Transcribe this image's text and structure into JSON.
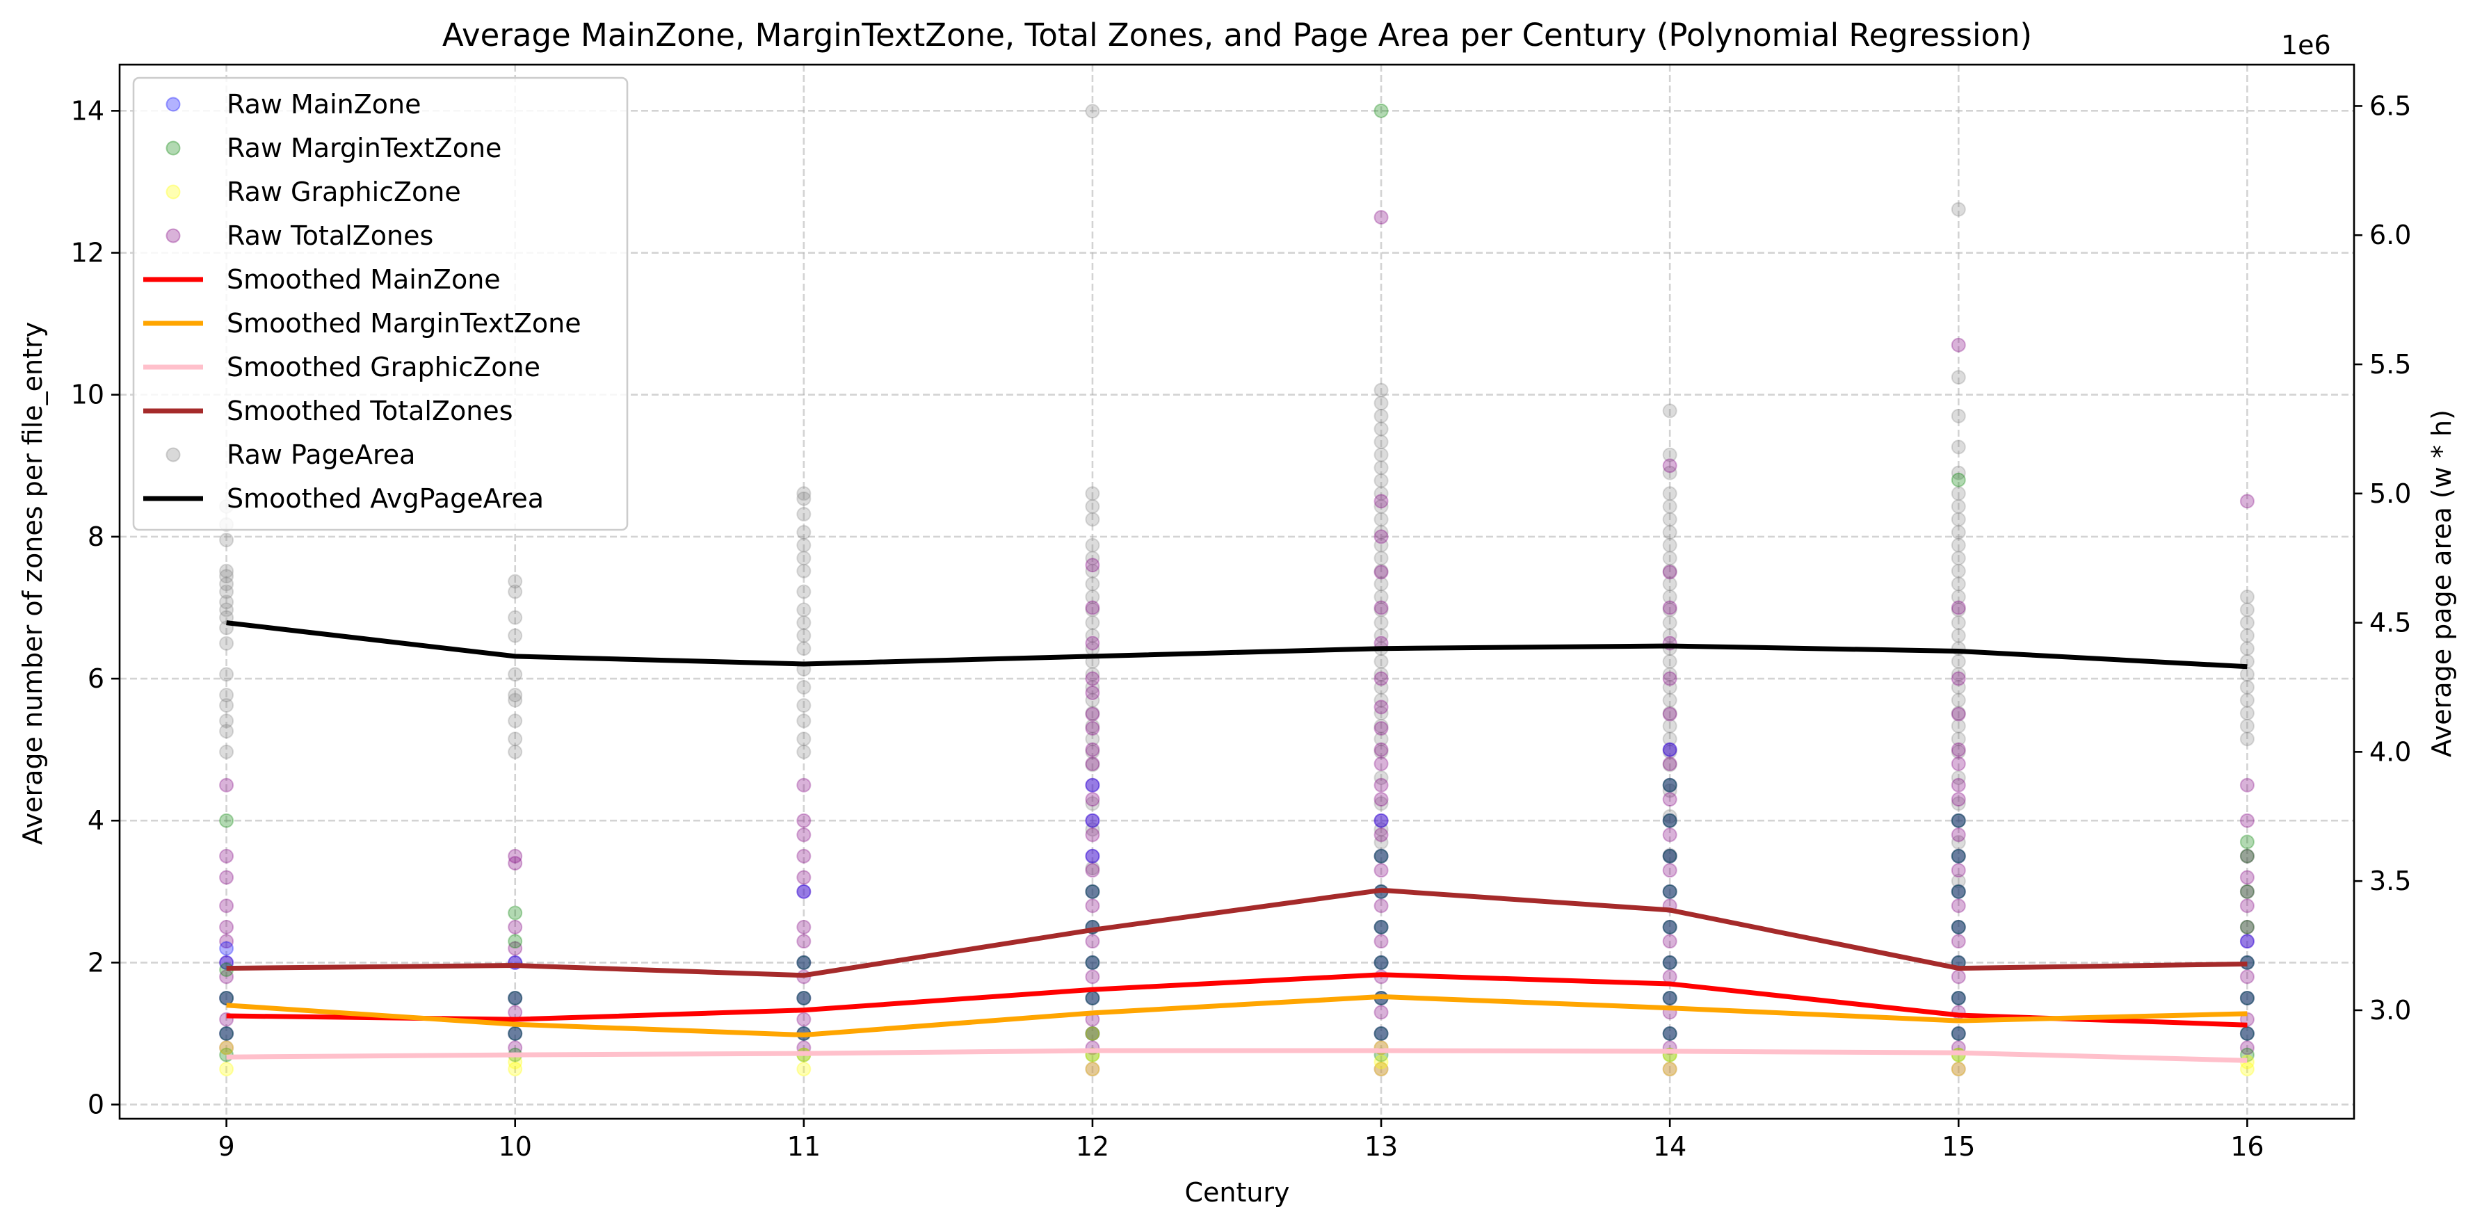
{
  "chart_data": {
    "type": "scatter",
    "title": "Average MainZone, MarginTextZone, Total Zones, and Page Area per Century (Polynomial Regression)",
    "xlabel": "Century",
    "ylabel_left": "Average number of zones per file_entry",
    "ylabel_right": "Average page area (w * h)",
    "right_axis_offset_label": "1e6",
    "x_ticks": [
      9,
      10,
      11,
      12,
      13,
      14,
      15,
      16
    ],
    "x_range": [
      8.63,
      16.37
    ],
    "y_left_range": [
      -0.2,
      14.65
    ],
    "y_left_ticks": [
      0,
      2,
      4,
      6,
      8,
      10,
      12,
      14
    ],
    "y_right_range": [
      2.58,
      6.66
    ],
    "y_right_ticks": [
      "3.0",
      "3.5",
      "4.0",
      "4.5",
      "5.0",
      "5.5",
      "6.0",
      "6.5"
    ],
    "grid": true,
    "legend_position": "upper left",
    "legend": [
      {
        "label": "Raw MainZone",
        "kind": "marker",
        "color": "#0000ff"
      },
      {
        "label": "Raw MarginTextZone",
        "kind": "marker",
        "color": "#008000"
      },
      {
        "label": "Raw GraphicZone",
        "kind": "marker",
        "color": "#ffff00"
      },
      {
        "label": "Raw TotalZones",
        "kind": "marker",
        "color": "#800080"
      },
      {
        "label": "Smoothed MainZone",
        "kind": "line",
        "color": "#ff0000"
      },
      {
        "label": "Smoothed MarginTextZone",
        "kind": "line",
        "color": "#ffa500"
      },
      {
        "label": "Smoothed GraphicZone",
        "kind": "line",
        "color": "#ffc0cb"
      },
      {
        "label": "Smoothed TotalZones",
        "kind": "line",
        "color": "#a52a2a"
      },
      {
        "label": "Raw PageArea",
        "kind": "marker",
        "color": "#808080"
      },
      {
        "label": "Smoothed AvgPageArea",
        "kind": "line",
        "color": "#000000"
      }
    ],
    "x": [
      9,
      10,
      11,
      12,
      13,
      14,
      15,
      16
    ],
    "smoothed_series": [
      {
        "name": "Smoothed MainZone",
        "axis": "left",
        "color": "#ff0000",
        "values": [
          1.25,
          1.2,
          1.33,
          1.62,
          1.83,
          1.7,
          1.26,
          1.12
        ]
      },
      {
        "name": "Smoothed MarginTextZone",
        "axis": "left",
        "color": "#ffa500",
        "values": [
          1.4,
          1.13,
          0.98,
          1.29,
          1.52,
          1.36,
          1.18,
          1.28
        ]
      },
      {
        "name": "Smoothed GraphicZone",
        "axis": "left",
        "color": "#ffc0cb",
        "values": [
          0.67,
          0.7,
          0.72,
          0.76,
          0.76,
          0.75,
          0.73,
          0.62
        ]
      },
      {
        "name": "Smoothed TotalZones",
        "axis": "left",
        "color": "#a52a2a",
        "values": [
          1.92,
          1.96,
          1.82,
          2.46,
          3.02,
          2.74,
          1.92,
          1.98
        ]
      },
      {
        "name": "Smoothed AvgPageArea",
        "axis": "right",
        "color": "#000000",
        "values": [
          4.5,
          4.37,
          4.34,
          4.37,
          4.4,
          4.41,
          4.39,
          4.33
        ]
      }
    ],
    "raw_series": [
      {
        "name": "Raw PageArea",
        "axis": "right",
        "color": "#808080",
        "points": [
          {
            "x": 9,
            "y": [
              4.0,
              4.08,
              4.12,
              4.18,
              4.22,
              4.3,
              4.42,
              4.48,
              4.52,
              4.55,
              4.58,
              4.62,
              4.65,
              4.68,
              4.7,
              4.82,
              4.88,
              4.95
            ]
          },
          {
            "x": 10,
            "y": [
              4.0,
              4.05,
              4.12,
              4.2,
              4.22,
              4.3,
              4.45,
              4.52,
              4.62,
              4.66,
              4.98
            ]
          },
          {
            "x": 11,
            "y": [
              4.0,
              4.05,
              4.12,
              4.18,
              4.25,
              4.32,
              4.4,
              4.45,
              4.5,
              4.55,
              4.62,
              4.7,
              4.75,
              4.8,
              4.85,
              4.92,
              4.98,
              5.0
            ]
          },
          {
            "x": 12,
            "y": [
              3.55,
              3.7,
              3.8,
              3.95,
              4.0,
              4.05,
              4.1,
              4.15,
              4.2,
              4.25,
              4.3,
              4.35,
              4.4,
              4.45,
              4.5,
              4.55,
              4.6,
              4.65,
              4.7,
              4.75,
              4.8,
              4.9,
              4.95,
              5.0,
              6.48
            ]
          },
          {
            "x": 13,
            "y": [
              3.65,
              3.7,
              3.8,
              3.9,
              4.0,
              4.05,
              4.1,
              4.15,
              4.2,
              4.25,
              4.3,
              4.35,
              4.4,
              4.45,
              4.5,
              4.55,
              4.6,
              4.65,
              4.7,
              4.75,
              4.8,
              4.85,
              4.9,
              4.95,
              5.0,
              5.05,
              5.1,
              5.15,
              5.2,
              5.25,
              5.3,
              5.35,
              5.4
            ]
          },
          {
            "x": 14,
            "y": [
              3.6,
              3.75,
              3.85,
              3.95,
              4.0,
              4.05,
              4.1,
              4.15,
              4.2,
              4.25,
              4.3,
              4.35,
              4.4,
              4.45,
              4.5,
              4.55,
              4.6,
              4.65,
              4.7,
              4.75,
              4.8,
              4.85,
              4.9,
              4.95,
              5.0,
              5.08,
              5.15,
              5.32
            ]
          },
          {
            "x": 15,
            "y": [
              3.5,
              3.65,
              3.8,
              3.9,
              4.0,
              4.05,
              4.1,
              4.15,
              4.2,
              4.25,
              4.3,
              4.35,
              4.4,
              4.45,
              4.5,
              4.55,
              4.6,
              4.65,
              4.7,
              4.75,
              4.8,
              4.85,
              4.9,
              4.95,
              5.0,
              5.08,
              5.18,
              5.3,
              5.45,
              6.1
            ]
          },
          {
            "x": 16,
            "y": [
              4.05,
              4.1,
              4.15,
              4.2,
              4.25,
              4.3,
              4.35,
              4.4,
              4.45,
              4.5,
              4.55,
              4.6
            ]
          }
        ]
      },
      {
        "name": "Raw TotalZones",
        "axis": "left",
        "color": "#800080",
        "points": [
          {
            "x": 9,
            "y": [
              0.8,
              1.0,
              1.2,
              1.5,
              1.8,
              2.0,
              2.3,
              2.5,
              2.8,
              3.2,
              3.5,
              4.5
            ]
          },
          {
            "x": 10,
            "y": [
              0.8,
              1.0,
              1.3,
              1.5,
              2.0,
              2.2,
              2.5,
              3.4,
              3.5
            ]
          },
          {
            "x": 11,
            "y": [
              0.8,
              1.0,
              1.2,
              1.5,
              1.8,
              2.0,
              2.3,
              2.5,
              3.0,
              3.2,
              3.5,
              3.8,
              4.0,
              4.5
            ]
          },
          {
            "x": 12,
            "y": [
              0.5,
              0.8,
              1.0,
              1.2,
              1.5,
              1.8,
              2.0,
              2.3,
              2.5,
              2.8,
              3.0,
              3.3,
              3.5,
              3.8,
              4.0,
              4.3,
              4.5,
              4.8,
              5.0,
              5.3,
              5.5,
              5.8,
              6.0,
              6.5,
              7.0,
              7.6
            ]
          },
          {
            "x": 13,
            "y": [
              0.5,
              0.8,
              1.0,
              1.3,
              1.5,
              1.8,
              2.0,
              2.3,
              2.5,
              2.8,
              3.0,
              3.3,
              3.5,
              3.8,
              4.0,
              4.3,
              4.5,
              4.8,
              5.0,
              5.3,
              5.6,
              6.0,
              6.5,
              7.0,
              7.5,
              8.0,
              8.5,
              12.5
            ]
          },
          {
            "x": 14,
            "y": [
              0.5,
              0.8,
              1.0,
              1.3,
              1.5,
              1.8,
              2.0,
              2.3,
              2.5,
              2.8,
              3.0,
              3.3,
              3.5,
              3.8,
              4.0,
              4.3,
              4.5,
              4.8,
              5.0,
              5.5,
              6.0,
              6.5,
              7.0,
              7.5,
              9.0
            ]
          },
          {
            "x": 15,
            "y": [
              0.5,
              0.8,
              1.0,
              1.3,
              1.5,
              1.8,
              2.0,
              2.3,
              2.5,
              2.8,
              3.0,
              3.3,
              3.5,
              3.8,
              4.0,
              4.3,
              4.5,
              4.8,
              5.0,
              5.5,
              6.0,
              7.0,
              10.7
            ]
          },
          {
            "x": 16,
            "y": [
              0.8,
              1.0,
              1.2,
              1.5,
              1.8,
              2.0,
              2.3,
              2.5,
              2.8,
              3.0,
              3.2,
              3.5,
              4.0,
              4.5,
              8.5
            ]
          }
        ]
      },
      {
        "name": "Raw MainZone",
        "axis": "left",
        "color": "#0000ff",
        "points": [
          {
            "x": 9,
            "y": [
              1.0,
              1.5,
              2.0,
              2.2
            ]
          },
          {
            "x": 10,
            "y": [
              1.0,
              1.5,
              2.0
            ]
          },
          {
            "x": 11,
            "y": [
              1.0,
              1.5,
              2.0,
              3.0
            ]
          },
          {
            "x": 12,
            "y": [
              1.0,
              1.5,
              2.0,
              2.5,
              3.0,
              3.5,
              4.0,
              4.5
            ]
          },
          {
            "x": 13,
            "y": [
              1.0,
              1.5,
              2.0,
              2.5,
              3.0,
              3.5,
              4.0
            ]
          },
          {
            "x": 14,
            "y": [
              1.0,
              1.5,
              2.0,
              2.5,
              3.0,
              3.5,
              4.0,
              4.5,
              5.0
            ]
          },
          {
            "x": 15,
            "y": [
              1.0,
              1.5,
              2.0,
              2.5,
              3.0,
              3.5,
              4.0
            ]
          },
          {
            "x": 16,
            "y": [
              1.0,
              1.5,
              2.0,
              2.3
            ]
          }
        ]
      },
      {
        "name": "Raw MarginTextZone",
        "axis": "left",
        "color": "#008000",
        "points": [
          {
            "x": 9,
            "y": [
              0.7,
              1.0,
              1.5,
              1.9,
              4.0
            ]
          },
          {
            "x": 10,
            "y": [
              0.7,
              1.0,
              1.5,
              2.3,
              2.7
            ]
          },
          {
            "x": 11,
            "y": [
              0.7,
              1.0,
              1.5,
              2.0
            ]
          },
          {
            "x": 12,
            "y": [
              0.7,
              1.0,
              1.5,
              2.0,
              2.5,
              3.0
            ]
          },
          {
            "x": 13,
            "y": [
              0.7,
              1.0,
              1.5,
              2.0,
              2.5,
              3.0,
              3.5,
              14.0
            ]
          },
          {
            "x": 14,
            "y": [
              0.7,
              1.0,
              1.5,
              2.0,
              2.5,
              3.0,
              3.5,
              4.0,
              4.5
            ]
          },
          {
            "x": 15,
            "y": [
              0.7,
              1.0,
              1.5,
              2.0,
              2.5,
              3.0,
              3.5,
              4.0,
              8.8
            ]
          },
          {
            "x": 16,
            "y": [
              0.7,
              1.0,
              1.5,
              2.0,
              2.5,
              3.0,
              3.5,
              3.7
            ]
          }
        ]
      },
      {
        "name": "Raw GraphicZone",
        "axis": "left",
        "color": "#ffff00",
        "points": [
          {
            "x": 9,
            "y": [
              0.5,
              0.8
            ]
          },
          {
            "x": 10,
            "y": [
              0.5,
              0.6
            ]
          },
          {
            "x": 11,
            "y": [
              0.5,
              0.7
            ]
          },
          {
            "x": 12,
            "y": [
              0.5,
              0.7,
              1.0
            ]
          },
          {
            "x": 13,
            "y": [
              0.5,
              0.6,
              0.8
            ]
          },
          {
            "x": 14,
            "y": [
              0.5,
              0.7
            ]
          },
          {
            "x": 15,
            "y": [
              0.5,
              0.7
            ]
          },
          {
            "x": 16,
            "y": [
              0.5,
              0.6
            ]
          }
        ]
      }
    ]
  }
}
